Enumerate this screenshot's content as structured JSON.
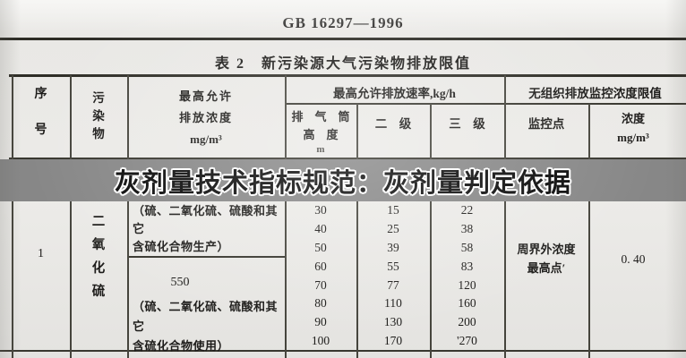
{
  "document": {
    "standard_code": "GB 16297—1996",
    "table_caption": "表 2　新污染源大气污染物排放限值"
  },
  "overlay_banner": {
    "text": "灰剂量技术指标规范：灰剂量判定依据",
    "bg_color": "#878787",
    "text_color": "#0a0a0a",
    "halo_color": "#ffffff"
  },
  "table": {
    "header": {
      "serial_chars": [
        "序",
        "号"
      ],
      "pollutant_chars": [
        "污",
        "染",
        "物"
      ],
      "max_conc_lines": [
        "最高允许",
        "排放浓度",
        "mg/m³"
      ],
      "rate_group": "最高允许排放速率,kg/h",
      "stack_line1": "排　气　筒",
      "stack_line2": "高　度",
      "stack_unit": "m",
      "level2": "二　级",
      "level3": "三　级",
      "fugitive_group": "无组织排放监控浓度限值",
      "monitor_point": "监控点",
      "conc_line1": "浓度",
      "conc_line2": "mg/m³"
    },
    "body": {
      "serial": "1",
      "pollutant_chars": [
        "二",
        "氧",
        "化",
        "硫"
      ],
      "production_note_line1": "（硫、二氧化硫、硫酸和其它",
      "production_note_line2": "含硫化合物生产）",
      "usage_value": "550",
      "usage_note_line1": "（硫、二氧化硫、硫酸和其它",
      "usage_note_line2": "含硫化合物使用）",
      "stack_heights": [
        "30",
        "40",
        "50",
        "60",
        "70",
        "80",
        "90",
        "100"
      ],
      "level2_rates": [
        "15",
        "25",
        "39",
        "55",
        "77",
        "110",
        "130",
        "170"
      ],
      "level3_rates": [
        "22",
        "38",
        "58",
        "83",
        "120",
        "160",
        "200",
        "'270"
      ],
      "monitor_point_line1": "周界外浓度",
      "monitor_point_line2": "最高点′",
      "conc_value": "0. 40"
    }
  }
}
